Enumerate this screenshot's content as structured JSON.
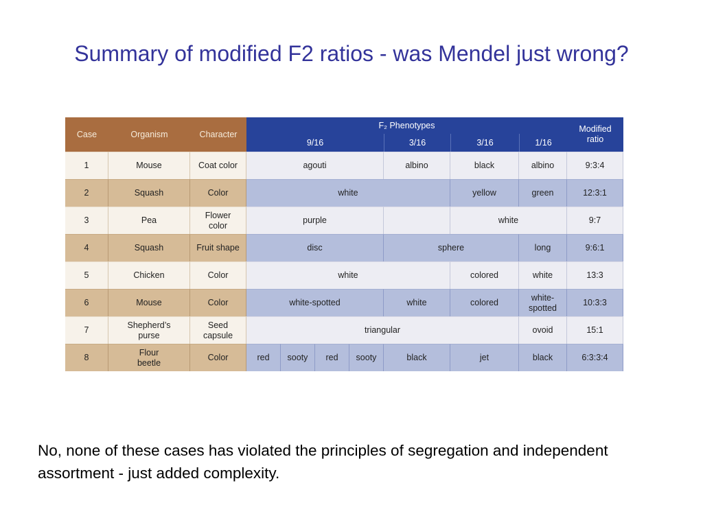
{
  "slide": {
    "title": "Summary of modified F2 ratios - was Mendel just wrong?",
    "note": "No, none of these cases has violated the principles of segregation and independent assortment - just added complexity."
  },
  "table": {
    "headers": {
      "case": "Case",
      "organism": "Organism",
      "character": "Character",
      "phenotypes_group": "F₂ Phenotypes",
      "ratio_9_16": "9/16",
      "ratio_3_16_a": "3/16",
      "ratio_3_16_b": "3/16",
      "ratio_1_16": "1/16",
      "modified_ratio": "Modified ratio"
    },
    "rows": [
      {
        "case": "1",
        "organism": "Mouse",
        "character": "Coat color",
        "p": [
          "agouti",
          "albino",
          "black",
          "albino"
        ],
        "ratio": "9:3:4"
      },
      {
        "case": "2",
        "organism": "Squash",
        "character": "Color",
        "p": [
          "white",
          "yellow",
          "green"
        ],
        "ratio": "12:3:1"
      },
      {
        "case": "3",
        "organism": "Pea",
        "character": "Flower color",
        "p": [
          "purple",
          "white"
        ],
        "ratio": "9:7"
      },
      {
        "case": "4",
        "organism": "Squash",
        "character": "Fruit shape",
        "p": [
          "disc",
          "sphere",
          "long"
        ],
        "ratio": "9:6:1"
      },
      {
        "case": "5",
        "organism": "Chicken",
        "character": "Color",
        "p": [
          "white",
          "colored",
          "white"
        ],
        "ratio": "13:3"
      },
      {
        "case": "6",
        "organism": "Mouse",
        "character": "Color",
        "p": [
          "white-spotted",
          "white",
          "colored",
          "white-spotted"
        ],
        "ratio": "10:3:3"
      },
      {
        "case": "7",
        "organism": "Shepherd’s purse",
        "character": "Seed capsule",
        "p": [
          "triangular",
          "ovoid"
        ],
        "ratio": "15:1"
      },
      {
        "case": "8",
        "organism": "Flour beetle",
        "character": "Color",
        "p": [
          "red",
          "sooty",
          "red",
          "sooty",
          "black",
          "jet",
          "black"
        ],
        "ratio": "6:3:3:4"
      }
    ]
  }
}
